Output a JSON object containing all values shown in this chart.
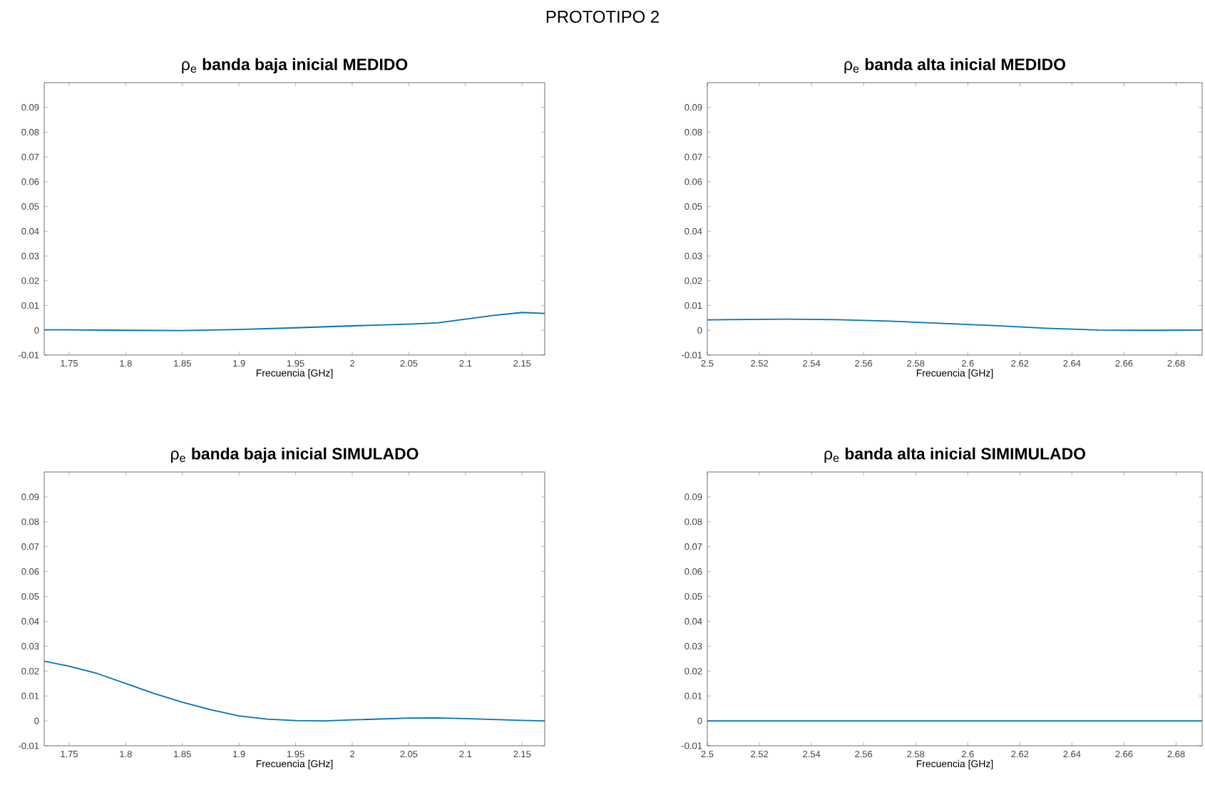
{
  "chart_data": [
    {
      "type": "line",
      "title": "ρ$_{e}$ **banda baja inicial MEDIDO**",
      "xlabel": "Frecuencia [GHz]",
      "annotations": [
        "PROTOTIPO 2"
      ],
      "color": "#0072bd",
      "x": [
        1.728,
        1.75,
        1.8,
        1.85,
        1.9,
        1.95,
        2.0,
        2.05,
        2.075,
        2.1,
        2.125,
        2.15,
        2.17
      ],
      "values": [
        0.0002,
        0.0002,
        0.0,
        -0.0001,
        0.0003,
        0.001,
        0.0018,
        0.0025,
        0.003,
        0.0045,
        0.006,
        0.0072,
        0.0068
      ],
      "xlim": [
        1.728,
        2.17
      ],
      "ylim": [
        -0.01,
        0.1
      ],
      "xticks": [
        1.75,
        1.8,
        1.85,
        1.9,
        1.95,
        2,
        2.05,
        2.1,
        2.15
      ],
      "yticks": [
        -0.01,
        0,
        0.01,
        0.02,
        0.03,
        0.04,
        0.05,
        0.06,
        0.07,
        0.08,
        0.09
      ]
    },
    {
      "type": "line",
      "title": "ρ$_{e}$ **banda alta inicial MEDIDO**",
      "xlabel": "Frecuencia [GHz]",
      "color": "#0072bd",
      "x": [
        2.5,
        2.53,
        2.55,
        2.57,
        2.59,
        2.61,
        2.63,
        2.65,
        2.67,
        2.69
      ],
      "values": [
        0.0042,
        0.0045,
        0.0043,
        0.0037,
        0.0028,
        0.0019,
        0.0008,
        0.0001,
        0.0,
        0.0001
      ],
      "xlim": [
        2.5,
        2.69
      ],
      "ylim": [
        -0.01,
        0.1
      ],
      "xticks": [
        2.5,
        2.52,
        2.54,
        2.56,
        2.58,
        2.6,
        2.62,
        2.64,
        2.66,
        2.68
      ],
      "yticks": [
        -0.01,
        0,
        0.01,
        0.02,
        0.03,
        0.04,
        0.05,
        0.06,
        0.07,
        0.08,
        0.09
      ]
    },
    {
      "type": "line",
      "title": "ρ$_{e}$ **banda baja inicial SIMULADO**",
      "xlabel": "Frecuencia [GHz]",
      "color": "#0072bd",
      "x": [
        1.728,
        1.75,
        1.775,
        1.8,
        1.825,
        1.85,
        1.875,
        1.9,
        1.925,
        1.95,
        1.975,
        2.0,
        2.05,
        2.075,
        2.1,
        2.15,
        2.17
      ],
      "values": [
        0.024,
        0.022,
        0.019,
        0.015,
        0.011,
        0.0075,
        0.0045,
        0.002,
        0.0007,
        0.0001,
        0.0,
        0.0004,
        0.0011,
        0.0012,
        0.0009,
        0.0002,
        0.0
      ],
      "xlim": [
        1.728,
        2.17
      ],
      "ylim": [
        -0.01,
        0.1
      ],
      "xticks": [
        1.75,
        1.8,
        1.85,
        1.9,
        1.95,
        2,
        2.05,
        2.1,
        2.15
      ],
      "yticks": [
        -0.01,
        0,
        0.01,
        0.02,
        0.03,
        0.04,
        0.05,
        0.06,
        0.07,
        0.08,
        0.09
      ]
    },
    {
      "type": "line",
      "title": "ρ$_{e}$ **banda alta inicial SIMIMULADO**",
      "xlabel": "Frecuencia [GHz]",
      "color": "#0072bd",
      "x": [
        2.5,
        2.6,
        2.69
      ],
      "values": [
        0,
        0,
        0
      ],
      "xlim": [
        2.5,
        2.69
      ],
      "ylim": [
        -0.01,
        0.1
      ],
      "xticks": [
        2.5,
        2.52,
        2.54,
        2.56,
        2.58,
        2.6,
        2.62,
        2.64,
        2.66,
        2.68
      ],
      "yticks": [
        -0.01,
        0,
        0.01,
        0.02,
        0.03,
        0.04,
        0.05,
        0.06,
        0.07,
        0.08,
        0.09
      ]
    }
  ]
}
